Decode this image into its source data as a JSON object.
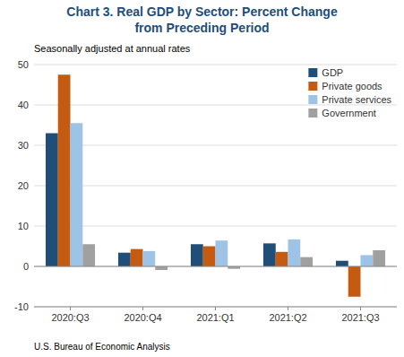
{
  "chart_data": {
    "type": "bar",
    "title": "Chart 3. Real GDP by Sector: Percent Change\nfrom Preceding Period",
    "subtitle": "Seasonally adjusted at annual rates",
    "categories": [
      "2020:Q3",
      "2020:Q4",
      "2021:Q1",
      "2021:Q2",
      "2021:Q3"
    ],
    "series": [
      {
        "name": "GDP",
        "color": "#1f4e79",
        "values": [
          33.0,
          3.4,
          5.5,
          5.7,
          1.4
        ]
      },
      {
        "name": "Private goods",
        "color": "#c55a11",
        "values": [
          47.5,
          4.3,
          5.0,
          3.6,
          -7.5
        ]
      },
      {
        "name": "Private services",
        "color": "#9dc3e6",
        "values": [
          35.5,
          3.8,
          6.4,
          6.7,
          2.8
        ]
      },
      {
        "name": "Government",
        "color": "#a0a0a0",
        "values": [
          5.5,
          -0.9,
          -0.6,
          2.3,
          4.0
        ]
      }
    ],
    "ylim": [
      -10,
      50
    ],
    "yticks": [
      -10,
      0,
      10,
      20,
      30,
      40,
      50
    ],
    "grid": true,
    "legend": "upper right",
    "annotations": [
      "U.S. Bureau of Economic Analysis"
    ]
  }
}
